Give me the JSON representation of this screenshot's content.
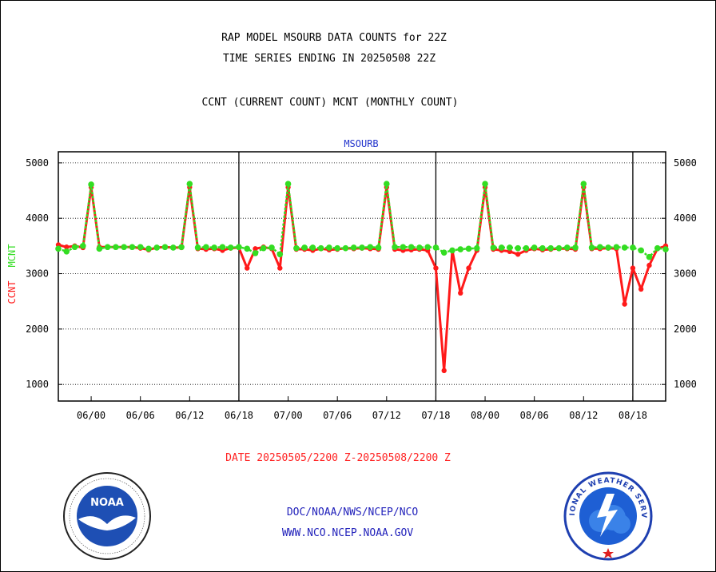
{
  "header": {
    "title_line1": "RAP MODEL MSOURB DATA COUNTS for 22Z",
    "title_line2": "TIME SERIES ENDING IN 20250508 22Z",
    "subtitle": "CCNT (CURRENT COUNT) MCNT (MONTHLY COUNT)"
  },
  "footer": {
    "date_range": "DATE 20250505/2200 Z-20250508/2200 Z",
    "org_line1": "DOC/NOAA/NWS/NCEP/NCO",
    "org_line2": "WWW.NCO.NCEP.NOAA.GOV"
  },
  "logos": {
    "noaa_text": "NOAA",
    "nws_label": "NATIONAL WEATHER SERVICE"
  },
  "colors": {
    "ccnt": "#ff1a1a",
    "mcnt": "#33dd22",
    "plot_title": "#2233cc",
    "footer_blue": "#2222bb",
    "date_red": "#ff2222"
  },
  "chart_data": {
    "type": "line",
    "title": "MSOURB",
    "ylabel_ccnt": "CCNT",
    "ylabel_mcnt": "MCNT",
    "ylim": [
      700,
      5200
    ],
    "yticks": [
      1000,
      2000,
      3000,
      4000,
      5000
    ],
    "xtick_labels": [
      "06/00",
      "06/06",
      "06/12",
      "06/18",
      "07/00",
      "07/06",
      "07/12",
      "07/18",
      "08/00",
      "08/06",
      "08/12",
      "08/18"
    ],
    "xtick_hours": [
      26,
      32,
      38,
      44,
      50,
      56,
      62,
      68,
      74,
      80,
      86,
      92
    ],
    "day_boundaries_hours": [
      44,
      68,
      92
    ],
    "xlim_hours": [
      22,
      96
    ],
    "x_hours": [
      22,
      23,
      24,
      25,
      26,
      27,
      28,
      29,
      30,
      31,
      32,
      33,
      34,
      35,
      36,
      37,
      38,
      39,
      40,
      41,
      42,
      43,
      44,
      45,
      46,
      47,
      48,
      49,
      50,
      51,
      52,
      53,
      54,
      55,
      56,
      57,
      58,
      59,
      60,
      61,
      62,
      63,
      64,
      65,
      66,
      67,
      68,
      69,
      70,
      71,
      72,
      73,
      74,
      75,
      76,
      77,
      78,
      79,
      80,
      81,
      82,
      83,
      84,
      85,
      86,
      87,
      88,
      89,
      90,
      91,
      92,
      93,
      94,
      95,
      96
    ],
    "series": [
      {
        "name": "CCNT",
        "values": [
          3520,
          3480,
          3500,
          3470,
          4560,
          3480,
          3480,
          3480,
          3480,
          3480,
          3460,
          3430,
          3470,
          3480,
          3470,
          3470,
          4560,
          3450,
          3440,
          3450,
          3420,
          3460,
          3470,
          3100,
          3450,
          3480,
          3450,
          3100,
          4560,
          3440,
          3440,
          3420,
          3450,
          3430,
          3440,
          3460,
          3450,
          3460,
          3450,
          3440,
          4560,
          3440,
          3420,
          3430,
          3440,
          3420,
          3100,
          1250,
          3420,
          2650,
          3100,
          3420,
          4560,
          3440,
          3420,
          3400,
          3350,
          3420,
          3450,
          3430,
          3440,
          3450,
          3450,
          3440,
          4560,
          3450,
          3450,
          3460,
          3450,
          2450,
          3100,
          2720,
          3150,
          3450,
          3500
        ]
      },
      {
        "name": "MCNT",
        "values": [
          3450,
          3400,
          3480,
          3500,
          4610,
          3450,
          3480,
          3480,
          3480,
          3480,
          3480,
          3450,
          3470,
          3480,
          3470,
          3480,
          4620,
          3470,
          3480,
          3470,
          3480,
          3470,
          3480,
          3450,
          3370,
          3460,
          3470,
          3350,
          4620,
          3460,
          3470,
          3470,
          3460,
          3470,
          3460,
          3460,
          3470,
          3470,
          3480,
          3470,
          4620,
          3480,
          3480,
          3480,
          3470,
          3480,
          3470,
          3380,
          3420,
          3440,
          3450,
          3460,
          4620,
          3470,
          3470,
          3470,
          3460,
          3460,
          3470,
          3460,
          3460,
          3460,
          3470,
          3470,
          4620,
          3470,
          3480,
          3470,
          3480,
          3470,
          3470,
          3420,
          3300,
          3460,
          3440
        ]
      }
    ]
  }
}
